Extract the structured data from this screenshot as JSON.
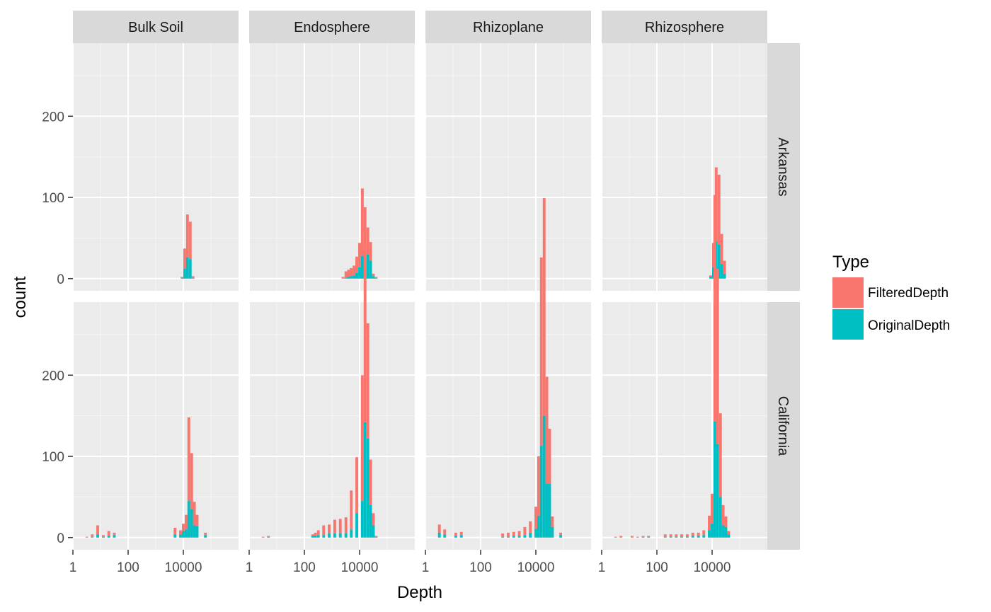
{
  "chart_data": {
    "type": "histogram",
    "facet_type": "grid",
    "xlabel": "Depth",
    "ylabel": "count",
    "x_scale": "log10",
    "x_ticks": [
      1,
      100,
      10000
    ],
    "x_tick_labels": [
      "1",
      "100",
      "10000"
    ],
    "xlim": [
      1,
      1000000
    ],
    "y_ticks": [
      0,
      100,
      200
    ],
    "y_tick_labels": [
      "0",
      "100",
      "200"
    ],
    "ylim": [
      -15,
      290
    ],
    "grid": true,
    "stacked": true,
    "columns": [
      "Bulk Soil",
      "Endosphere",
      "Rhizoplane",
      "Rhizosphere"
    ],
    "rows": [
      "Arkansas",
      "California"
    ],
    "legend": {
      "title": "Type",
      "placement": "right",
      "entries": [
        {
          "label": "FilteredDepth",
          "color": "#F8766D"
        },
        {
          "label": "OriginalDepth",
          "color": "#00BFC4"
        }
      ]
    },
    "bin_width_log10": 0.1,
    "panels": [
      {
        "row": "Arkansas",
        "col": "Bulk Soil",
        "bars": [
          {
            "x": 8900,
            "filtered": 1,
            "original": 1
          },
          {
            "x": 11200,
            "filtered": 25,
            "original": 12
          },
          {
            "x": 14100,
            "filtered": 53,
            "original": 26
          },
          {
            "x": 17800,
            "filtered": 46,
            "original": 24
          },
          {
            "x": 22400,
            "filtered": 2,
            "original": 1
          }
        ]
      },
      {
        "row": "Arkansas",
        "col": "Endosphere",
        "bars": [
          {
            "x": 2500,
            "filtered": 2,
            "original": 0
          },
          {
            "x": 3200,
            "filtered": 8,
            "original": 1
          },
          {
            "x": 4000,
            "filtered": 9,
            "original": 2
          },
          {
            "x": 5000,
            "filtered": 10,
            "original": 3
          },
          {
            "x": 6300,
            "filtered": 12,
            "original": 4
          },
          {
            "x": 7900,
            "filtered": 20,
            "original": 7
          },
          {
            "x": 10000,
            "filtered": 30,
            "original": 14
          },
          {
            "x": 12600,
            "filtered": 83,
            "original": 28
          },
          {
            "x": 15800,
            "filtered": 55,
            "original": 33
          },
          {
            "x": 20000,
            "filtered": 33,
            "original": 30
          },
          {
            "x": 25100,
            "filtered": 23,
            "original": 22
          },
          {
            "x": 31600,
            "filtered": 3,
            "original": 3
          },
          {
            "x": 39800,
            "filtered": 1,
            "original": 1
          }
        ]
      },
      {
        "row": "Arkansas",
        "col": "Rhizoplane",
        "bars": []
      },
      {
        "row": "Arkansas",
        "col": "Rhizosphere",
        "bars": [
          {
            "x": 8900,
            "filtered": 2,
            "original": 2
          },
          {
            "x": 11200,
            "filtered": 30,
            "original": 14
          },
          {
            "x": 14100,
            "filtered": 91,
            "original": 46
          },
          {
            "x": 17800,
            "filtered": 86,
            "original": 42
          },
          {
            "x": 22400,
            "filtered": 37,
            "original": 18
          },
          {
            "x": 28200,
            "filtered": 16,
            "original": 6
          }
        ]
      },
      {
        "row": "California",
        "col": "Bulk Soil",
        "bars": [
          {
            "x": 3.2,
            "filtered": 1,
            "original": 0
          },
          {
            "x": 5,
            "filtered": 3,
            "original": 1
          },
          {
            "x": 7.9,
            "filtered": 11,
            "original": 4
          },
          {
            "x": 12.6,
            "filtered": 2,
            "original": 1
          },
          {
            "x": 20,
            "filtered": 6,
            "original": 2
          },
          {
            "x": 31.6,
            "filtered": 3,
            "original": 3
          },
          {
            "x": 5000,
            "filtered": 8,
            "original": 4
          },
          {
            "x": 7900,
            "filtered": 5,
            "original": 4
          },
          {
            "x": 10000,
            "filtered": 9,
            "original": 8
          },
          {
            "x": 12600,
            "filtered": 18,
            "original": 10
          },
          {
            "x": 15800,
            "filtered": 103,
            "original": 45
          },
          {
            "x": 20000,
            "filtered": 69,
            "original": 35
          },
          {
            "x": 25100,
            "filtered": 29,
            "original": 15
          },
          {
            "x": 31600,
            "filtered": 14,
            "original": 14
          },
          {
            "x": 63100,
            "filtered": 3,
            "original": 3
          }
        ]
      },
      {
        "row": "California",
        "col": "Endosphere",
        "bars": [
          {
            "x": 3.2,
            "filtered": 1,
            "original": 0
          },
          {
            "x": 5,
            "filtered": 1,
            "original": 1
          },
          {
            "x": 200,
            "filtered": 2,
            "original": 2
          },
          {
            "x": 250,
            "filtered": 4,
            "original": 2
          },
          {
            "x": 320,
            "filtered": 6,
            "original": 3
          },
          {
            "x": 500,
            "filtered": 12,
            "original": 3
          },
          {
            "x": 790,
            "filtered": 11,
            "original": 5
          },
          {
            "x": 1260,
            "filtered": 17,
            "original": 5
          },
          {
            "x": 2000,
            "filtered": 18,
            "original": 5
          },
          {
            "x": 3200,
            "filtered": 20,
            "original": 5
          },
          {
            "x": 5000,
            "filtered": 48,
            "original": 10
          },
          {
            "x": 7900,
            "filtered": 69,
            "original": 30
          },
          {
            "x": 12600,
            "filtered": 155,
            "original": 45
          },
          {
            "x": 15800,
            "filtered": 216,
            "original": 142
          },
          {
            "x": 20000,
            "filtered": 142,
            "original": 122
          },
          {
            "x": 25100,
            "filtered": 56,
            "original": 40
          },
          {
            "x": 31600,
            "filtered": 15,
            "original": 15
          },
          {
            "x": 39800,
            "filtered": 1,
            "original": 1
          }
        ]
      },
      {
        "row": "California",
        "col": "Rhizoplane",
        "bars": [
          {
            "x": 3.2,
            "filtered": 10,
            "original": 6
          },
          {
            "x": 5,
            "filtered": 6,
            "original": 4
          },
          {
            "x": 12.6,
            "filtered": 4,
            "original": 2
          },
          {
            "x": 20,
            "filtered": 4,
            "original": 3
          },
          {
            "x": 630,
            "filtered": 4,
            "original": 1
          },
          {
            "x": 1000,
            "filtered": 5,
            "original": 1
          },
          {
            "x": 1580,
            "filtered": 5,
            "original": 2
          },
          {
            "x": 2510,
            "filtered": 6,
            "original": 2
          },
          {
            "x": 3980,
            "filtered": 10,
            "original": 3
          },
          {
            "x": 6310,
            "filtered": 14,
            "original": 6
          },
          {
            "x": 10000,
            "filtered": 27,
            "original": 11
          },
          {
            "x": 12600,
            "filtered": 73,
            "original": 27
          },
          {
            "x": 15800,
            "filtered": 232,
            "original": 113
          },
          {
            "x": 20000,
            "filtered": 268,
            "original": 150
          },
          {
            "x": 25100,
            "filtered": 132,
            "original": 66
          },
          {
            "x": 31600,
            "filtered": 68,
            "original": 66
          },
          {
            "x": 39800,
            "filtered": 13,
            "original": 13
          },
          {
            "x": 79400,
            "filtered": 3,
            "original": 3
          }
        ]
      },
      {
        "row": "California",
        "col": "Rhizosphere",
        "bars": [
          {
            "x": 3.2,
            "filtered": 1,
            "original": 0
          },
          {
            "x": 5,
            "filtered": 2,
            "original": 0
          },
          {
            "x": 12.6,
            "filtered": 2,
            "original": 0
          },
          {
            "x": 20,
            "filtered": 1,
            "original": 0
          },
          {
            "x": 31.6,
            "filtered": 1,
            "original": 1
          },
          {
            "x": 50,
            "filtered": 1,
            "original": 1
          },
          {
            "x": 200,
            "filtered": 3,
            "original": 1
          },
          {
            "x": 320,
            "filtered": 3,
            "original": 1
          },
          {
            "x": 500,
            "filtered": 3,
            "original": 1
          },
          {
            "x": 790,
            "filtered": 3,
            "original": 1
          },
          {
            "x": 1260,
            "filtered": 3,
            "original": 1
          },
          {
            "x": 2000,
            "filtered": 4,
            "original": 2
          },
          {
            "x": 3200,
            "filtered": 4,
            "original": 2
          },
          {
            "x": 5000,
            "filtered": 6,
            "original": 3
          },
          {
            "x": 7900,
            "filtered": 18,
            "original": 9
          },
          {
            "x": 10000,
            "filtered": 37,
            "original": 17
          },
          {
            "x": 12600,
            "filtered": 279,
            "original": 143
          },
          {
            "x": 15800,
            "filtered": 216,
            "original": 115
          },
          {
            "x": 20000,
            "filtered": 103,
            "original": 50
          },
          {
            "x": 25100,
            "filtered": 25,
            "original": 15
          },
          {
            "x": 31600,
            "filtered": 13,
            "original": 13
          },
          {
            "x": 39800,
            "filtered": 4,
            "original": 4
          }
        ]
      }
    ]
  }
}
